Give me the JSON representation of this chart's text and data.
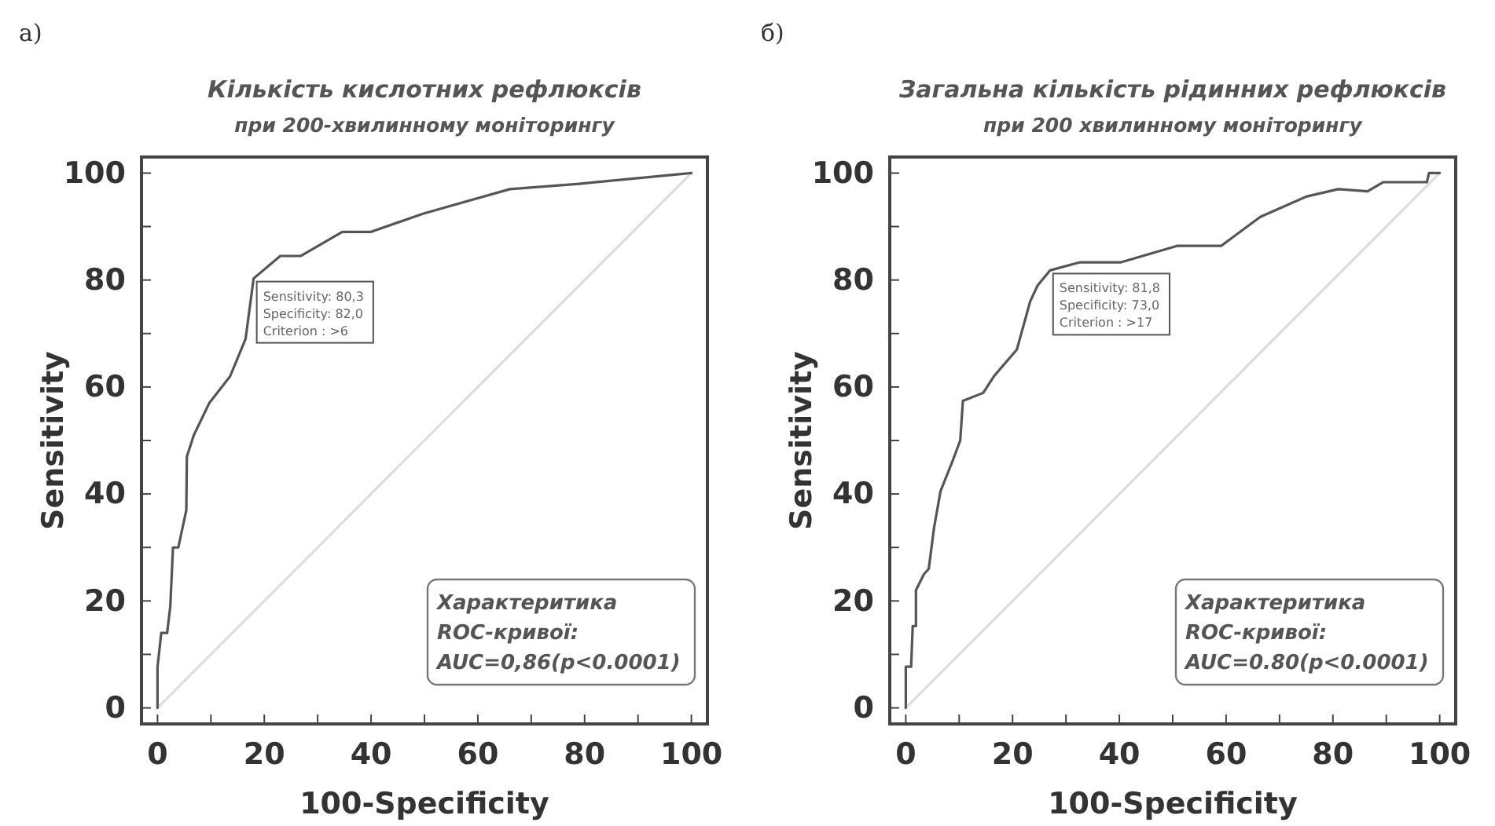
{
  "chart_data": [
    {
      "type": "line",
      "title": "Кількість кислотних рефлюксів",
      "subtitle": "при  200-хвилинному моніторингу",
      "xlabel": "100-Specificity",
      "ylabel": "Sensitivity",
      "xlim": [
        -3,
        103
      ],
      "ylim": [
        -3,
        103
      ],
      "xticks": [
        0,
        {
          "value": 10,
          "label": null
        },
        20,
        {
          "value": 30,
          "label": null
        },
        40,
        {
          "value": 50,
          "label": null
        },
        60,
        {
          "value": 70,
          "label": null
        },
        80,
        {
          "value": 90,
          "label": null
        },
        100
      ],
      "yticks": [
        0,
        {
          "value": 10,
          "label": null
        },
        20,
        {
          "value": 30,
          "label": null
        },
        40,
        {
          "value": 50,
          "label": null
        },
        60,
        {
          "value": 70,
          "label": null
        },
        80,
        {
          "value": 90,
          "label": null
        },
        100
      ],
      "series": [
        {
          "color": "#dddddd",
          "x": [
            0,
            100
          ],
          "values": [
            0,
            100
          ]
        },
        {
          "color": "#555555",
          "x": [
            0,
            0,
            0.7,
            1.8,
            2.4,
            2.9,
            3.9,
            5.4,
            5.5,
            6.8,
            9.7,
            13.6,
            16.5,
            18,
            23,
            26.8,
            34.6,
            40,
            49.7,
            66,
            79,
            100
          ],
          "values": [
            0,
            7.6,
            14,
            14,
            19,
            30,
            30,
            37,
            47,
            51,
            57,
            62,
            69,
            80.3,
            84.5,
            84.5,
            89,
            89,
            92.4,
            97,
            98,
            100
          ]
        }
      ],
      "annotations": [
        "а)",
        {
          "text": "Sensitivity: 80,3\nSpecificity: 82,0\nCriterion : >6",
          "x": 18,
          "y": 80.3
        },
        "Характеритика\nROC-кривої:\nAUC=0,86(p<0.0001)"
      ]
    },
    {
      "type": "line",
      "title": "Загальна кількість рідинних рефлюксів",
      "subtitle": "при 200 хвилинному моніторингу",
      "xlabel": "100-Specificity",
      "ylabel": "Sensitivity",
      "xlim": [
        -3,
        103
      ],
      "ylim": [
        -3,
        103
      ],
      "xticks": [
        0,
        {
          "value": 10,
          "label": null
        },
        20,
        {
          "value": 30,
          "label": null
        },
        40,
        {
          "value": 50,
          "label": null
        },
        60,
        {
          "value": 70,
          "label": null
        },
        80,
        {
          "value": 90,
          "label": null
        },
        100
      ],
      "yticks": [
        0,
        {
          "value": 10,
          "label": null
        },
        20,
        {
          "value": 30,
          "label": null
        },
        40,
        {
          "value": 50,
          "label": null
        },
        60,
        {
          "value": 70,
          "label": null
        },
        80,
        {
          "value": 90,
          "label": null
        },
        100
      ],
      "series": [
        {
          "color": "#dddddd",
          "x": [
            0,
            100
          ],
          "values": [
            0,
            100
          ]
        },
        {
          "color": "#555555",
          "x": [
            0,
            0,
            1,
            1.3,
            1.9,
            1.9,
            3.4,
            4.3,
            5.3,
            6.5,
            8.7,
            10.2,
            10.7,
            14.5,
            16.5,
            20.8,
            23.3,
            24.7,
            27,
            32.5,
            40.2,
            50.9,
            59.1,
            66.4,
            75,
            81,
            86.5,
            89.4,
            97.6,
            98,
            100
          ],
          "values": [
            0,
            7.7,
            7.7,
            15.3,
            15.3,
            22,
            25,
            26,
            33.7,
            40.5,
            46,
            50,
            57.4,
            58.9,
            62,
            67,
            76,
            79,
            81.8,
            83.3,
            83.3,
            86.4,
            86.4,
            91.8,
            95.6,
            97,
            96.6,
            98.3,
            98.3,
            100,
            100
          ]
        }
      ],
      "annotations": [
        "б)",
        {
          "text": "Sensitivity: 81,8\nSpecificity: 73,0\nCriterion : >17",
          "x": 27,
          "y": 81.8
        },
        "Характеритика\nROC-кривої:\nAUC=0.80(p<0.0001)"
      ]
    }
  ]
}
